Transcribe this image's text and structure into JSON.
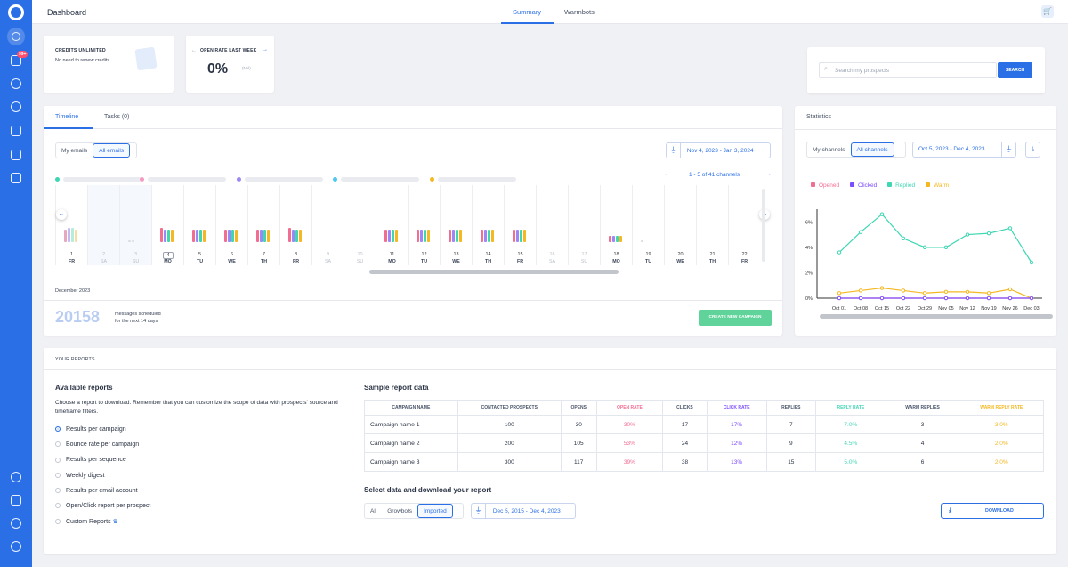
{
  "colors": {
    "primary": "#2a6fe6",
    "opened": "#f26d92",
    "clicked": "#7c4dff",
    "replied": "#3fd6b3",
    "warm": "#f4b821",
    "green": "#5fd39a"
  },
  "sidebar": {
    "badge": "99+",
    "icons": [
      "logo-icon",
      "dashboard-icon",
      "mail-icon",
      "search-icon",
      "target-icon",
      "building-icon",
      "swap-icon",
      "chat-icon",
      "bulb-icon",
      "calendar-icon",
      "gear-icon",
      "power-icon"
    ]
  },
  "header": {
    "title": "Dashboard",
    "tabs": [
      "Summary",
      "Warmbots"
    ],
    "active_tab": "Summary"
  },
  "credits": {
    "title": "CREDITS UNLIMITED",
    "text": "No need to renew credits"
  },
  "openrate": {
    "title": "OPEN RATE LAST WEEK",
    "value": "0%",
    "delta": "(Nul)"
  },
  "search": {
    "placeholder": "Search my prospects",
    "button": "SEARCH"
  },
  "timeline": {
    "tabs": [
      "Timeline",
      "Tasks (0)"
    ],
    "segments": [
      "My emails",
      "All emails"
    ],
    "date_range": "Nov 4, 2023 - Jan 3, 2024",
    "pager": "1 - 5 of 41 channels",
    "month": "December 2023",
    "count": "20158",
    "count_text_1": "messages scheduled",
    "count_text_2": "for the next 14 days",
    "create_button": "CREATE NEW CAMPAIGN",
    "days": [
      {
        "n": "1",
        "d": "FR",
        "we": false
      },
      {
        "n": "2",
        "d": "SA",
        "we": true
      },
      {
        "n": "3",
        "d": "SU",
        "we": true
      },
      {
        "n": "4",
        "d": "MO",
        "we": false,
        "today": true
      },
      {
        "n": "5",
        "d": "TU",
        "we": false
      },
      {
        "n": "6",
        "d": "WE",
        "we": false
      },
      {
        "n": "7",
        "d": "TH",
        "we": false
      },
      {
        "n": "8",
        "d": "FR",
        "we": false
      },
      {
        "n": "9",
        "d": "SA",
        "we": true
      },
      {
        "n": "10",
        "d": "SU",
        "we": true
      },
      {
        "n": "11",
        "d": "MO",
        "we": false
      },
      {
        "n": "12",
        "d": "TU",
        "we": false
      },
      {
        "n": "13",
        "d": "WE",
        "we": false
      },
      {
        "n": "14",
        "d": "TH",
        "we": false
      },
      {
        "n": "15",
        "d": "FR",
        "we": false
      },
      {
        "n": "16",
        "d": "SA",
        "we": true
      },
      {
        "n": "17",
        "d": "SU",
        "we": true
      },
      {
        "n": "18",
        "d": "MO",
        "we": false
      },
      {
        "n": "19",
        "d": "TU",
        "we": false
      },
      {
        "n": "20",
        "d": "WE",
        "we": false
      },
      {
        "n": "21",
        "d": "TH",
        "we": false
      },
      {
        "n": "22",
        "d": "FR",
        "we": false
      }
    ]
  },
  "statistics": {
    "title": "Statistics",
    "segments": [
      "My channels",
      "All channels"
    ],
    "date_range": "Oct 5, 2023 - Dec 4, 2023",
    "legend": [
      "Opened",
      "Clicked",
      "Replied",
      "Warm"
    ]
  },
  "chart_data": {
    "type": "line",
    "categories": [
      "Oct 01",
      "Oct 08",
      "Oct 15",
      "Oct 22",
      "Oct 29",
      "Nov 05",
      "Nov 12",
      "Nov 19",
      "Nov 26",
      "Dec 03"
    ],
    "ylim": [
      0,
      7
    ],
    "yticks": [
      "0%",
      "2%",
      "4%",
      "6%"
    ],
    "series": [
      {
        "name": "Replied",
        "values": [
          3.6,
          5.2,
          6.6,
          4.7,
          4.0,
          4.0,
          5.0,
          5.1,
          5.5,
          2.8
        ]
      },
      {
        "name": "Warm",
        "values": [
          0.4,
          0.6,
          0.8,
          0.6,
          0.4,
          0.5,
          0.5,
          0.4,
          0.7,
          0.0
        ]
      },
      {
        "name": "Opened",
        "values": [
          0,
          0,
          0,
          0,
          0,
          0,
          0,
          0,
          0,
          0
        ]
      },
      {
        "name": "Clicked",
        "values": [
          0,
          0,
          0,
          0,
          0,
          0,
          0,
          0,
          0,
          0
        ]
      }
    ]
  },
  "reports": {
    "section_title": "YOUR REPORTS",
    "available_title": "Available reports",
    "description": "Choose a report to download. Remember that you can customize the scope of data with prospects' source and timeframe filters.",
    "options": [
      "Results per campaign",
      "Bounce rate per campaign",
      "Results per sequence",
      "Weekly digest",
      "Results per email account",
      "Open/Click report per prospect",
      "Custom Reports"
    ],
    "sample_title": "Sample report data",
    "columns": [
      "CAMPAIGN NAME",
      "CONTACTED PROSPECTS",
      "OPENS",
      "OPEN RATE",
      "CLICKS",
      "CLICK RATE",
      "REPLIES",
      "REPLY RATE",
      "WARM REPLIES",
      "WARM REPLY RATE"
    ],
    "rows": [
      [
        "Campaign name 1",
        "100",
        "30",
        "30%",
        "17",
        "17%",
        "7",
        "7.0%",
        "3",
        "3.0%"
      ],
      [
        "Campaign name 2",
        "200",
        "105",
        "53%",
        "24",
        "12%",
        "9",
        "4.5%",
        "4",
        "2.0%"
      ],
      [
        "Campaign name 3",
        "300",
        "117",
        "39%",
        "38",
        "13%",
        "15",
        "5.0%",
        "6",
        "2.0%"
      ]
    ],
    "select_title": "Select data and download your report",
    "source_tabs": [
      "All",
      "Growbots",
      "Imported"
    ],
    "date_range": "Dec 5, 2015 - Dec 4, 2023",
    "download": "DOWNLOAD"
  }
}
